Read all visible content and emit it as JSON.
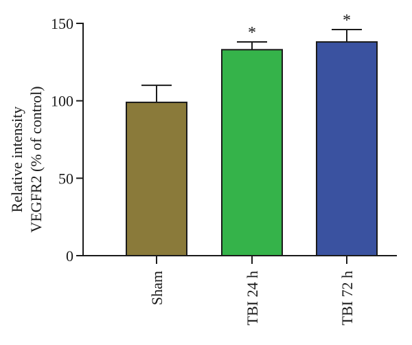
{
  "chart_data": {
    "type": "bar",
    "categories": [
      "Sham",
      "TBI 24 h",
      "TBI 72 h"
    ],
    "values": [
      99,
      133,
      138
    ],
    "error": [
      11,
      5,
      8
    ],
    "significance": [
      "",
      "*",
      "*"
    ],
    "colors": [
      "#8a7a3a",
      "#35b34a",
      "#3a52a0"
    ],
    "ylabel_line1": "Relative intensity",
    "ylabel_line2": "VEGFR2 (% of control)",
    "xlabel": "",
    "ylim": [
      0,
      150
    ],
    "yticks": [
      0,
      50,
      100,
      150
    ],
    "grid": false,
    "legend": "none"
  }
}
